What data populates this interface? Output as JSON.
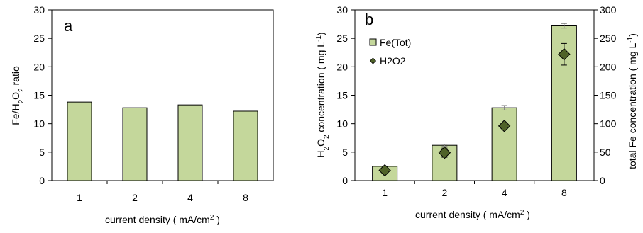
{
  "chart_data": [
    {
      "panel": "a",
      "type": "bar",
      "panel_label": "a",
      "categories": [
        "1",
        "2",
        "4",
        "8"
      ],
      "values": [
        13.8,
        12.8,
        13.3,
        12.2
      ],
      "xlabel_main": "current density ( mA/cm",
      "xlabel_sup": "2",
      "xlabel_end": " )",
      "ylabel_pre": "Fe/H",
      "ylabel_sub1": "2",
      "ylabel_mid": "O",
      "ylabel_sub2": "2",
      "ylabel_post": " ratio",
      "ylim": [
        0,
        30
      ],
      "yticks": [
        0,
        5,
        10,
        15,
        20,
        25,
        30
      ],
      "grid": false,
      "colors": {
        "bar_fill": "#c4d79b",
        "bar_stroke": "#000000"
      }
    },
    {
      "panel": "b",
      "type": "bar",
      "panel_label": "b",
      "categories": [
        "1",
        "2",
        "4",
        "8"
      ],
      "series": [
        {
          "name": "Fe(Tot)",
          "type": "bar",
          "axis": "right",
          "values": [
            25,
            62,
            128,
            272
          ],
          "errors": [
            0,
            2,
            4,
            4
          ],
          "color": "#c4d79b"
        },
        {
          "name": "H2O2",
          "type": "scatter",
          "marker": "diamond",
          "axis": "left",
          "values": [
            1.8,
            4.9,
            9.6,
            22.2
          ],
          "errors": [
            0.3,
            0.8,
            0.5,
            1.9
          ],
          "color": "#4f6228"
        }
      ],
      "xlabel_main": "current density ( mA/cm",
      "xlabel_sup": "2",
      "xlabel_end": " )",
      "ylabel_left_pre": "H",
      "ylabel_left_sub1": "2",
      "ylabel_left_mid": "O",
      "ylabel_left_sub2": "2",
      "ylabel_left_post": " concentration ( mg L",
      "ylabel_left_sup": "-1",
      "ylabel_left_end": ")",
      "ylabel_right_main": "total Fe concentration ( mg L",
      "ylabel_right_sup": "-1",
      "ylabel_right_end": ")",
      "ylim_left": [
        0,
        30
      ],
      "ylim_right": [
        0,
        300
      ],
      "yticks_left": [
        0,
        5,
        10,
        15,
        20,
        25,
        30
      ],
      "yticks_right": [
        0,
        50,
        100,
        150,
        200,
        250,
        300
      ],
      "legend_placement": "top-left",
      "grid": false
    }
  ]
}
